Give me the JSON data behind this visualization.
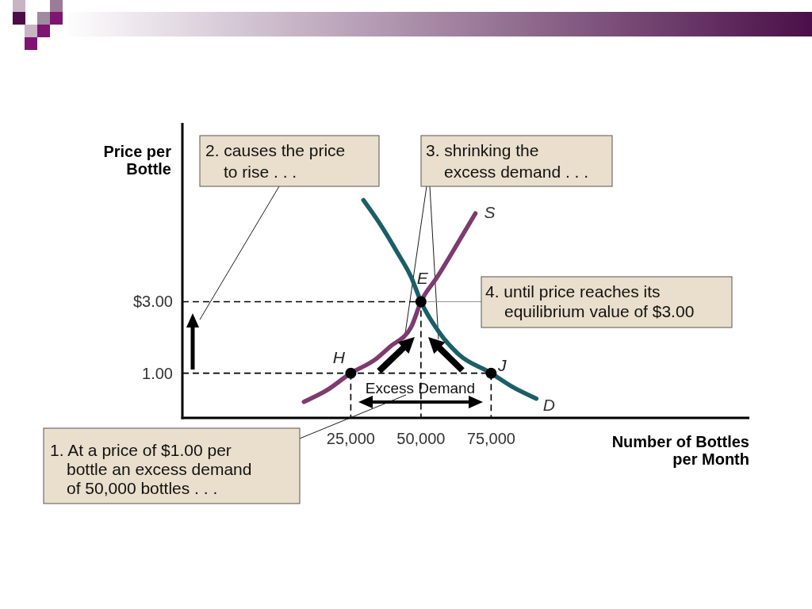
{
  "chart_data": {
    "type": "line",
    "xlabel": "Number of Bottles\nper Month",
    "ylabel": "Price per\nBottle",
    "xlim": [
      -35000,
      167000
    ],
    "ylim": [
      -0.25,
      8
    ],
    "xticks": [
      {
        "value": 25000,
        "label": "25,000"
      },
      {
        "value": 50000,
        "label": "50,000"
      },
      {
        "value": 75000,
        "label": "75,000"
      }
    ],
    "yticks": [
      {
        "value": 1,
        "label": "1.00"
      },
      {
        "value": 3,
        "label": "$3.00"
      }
    ],
    "series": [
      {
        "color": "#000000",
        "line_style": "dashed",
        "x": [
          -35000,
          50000,
          50000
        ],
        "values": [
          3,
          3,
          -0.25
        ]
      },
      {
        "color": "#000000",
        "line_style": "dashed",
        "x": [
          -35000,
          75000,
          75000
        ],
        "values": [
          1,
          1,
          -0.25
        ]
      },
      {
        "color": "#000000",
        "line_style": "dashed",
        "x": [
          25000,
          25000
        ],
        "values": [
          1,
          -0.25
        ]
      },
      {
        "name": "S",
        "color": "#7d3b6e",
        "line_style": "solid",
        "x": [
          8300,
          16200,
          25000,
          34000,
          38800,
          46500,
          50000,
          55800,
          62300,
          69400
        ],
        "values": [
          0.2,
          0.51,
          1,
          1.4,
          1.73,
          2.29,
          3,
          3.69,
          4.53,
          5.47
        ]
      },
      {
        "name": "D",
        "color": "#1b5e66",
        "line_style": "solid",
        "x": [
          29500,
          35200,
          41700,
          46500,
          50000,
          56600,
          63400,
          75000,
          82100,
          91100
        ],
        "values": [
          5.84,
          5.2,
          4.36,
          3.69,
          3,
          2.13,
          1.53,
          1,
          0.64,
          0.29
        ]
      },
      {
        "type": "scatter",
        "color": "#000000",
        "marker": "circle",
        "x": [
          25000,
          50000,
          75000
        ],
        "values": [
          1,
          3,
          1
        ]
      }
    ],
    "annotations": [
      "1. At a price of $1.00 per\nbottle an excess demand\nof 50,000 bottles . . .",
      "2. causes the price\nto rise . . .",
      {
        "text": "3. shrinking the\nexcess demand . . .",
        "x": 44100,
        "y": 1.95
      },
      {
        "text": "4. until price reaches its\nequilibrium value of $3.00",
        "x": 50000,
        "y": 3
      },
      "Excess Demand",
      {
        "text": "H",
        "x": 25000,
        "y": 1
      },
      {
        "text": "E",
        "x": 50000,
        "y": 3
      },
      {
        "text": "J",
        "x": 75000,
        "y": 1
      }
    ]
  }
}
